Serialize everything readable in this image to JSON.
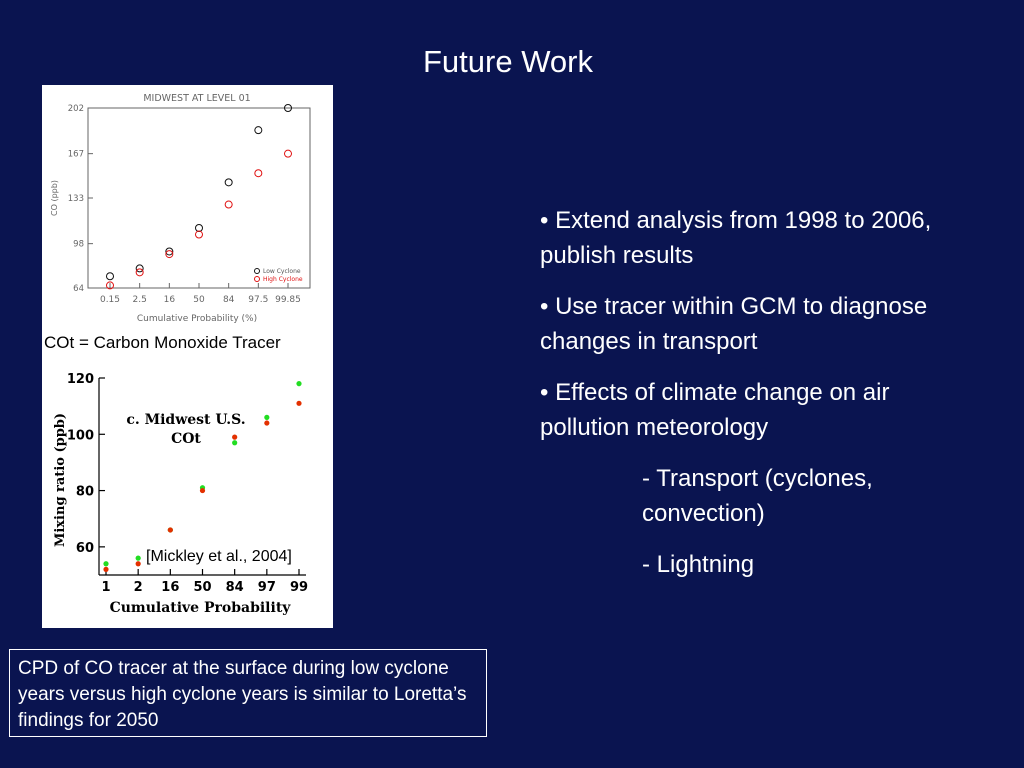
{
  "slide": {
    "title": "Future Work"
  },
  "caption_cot": "COt = Carbon Monoxide Tracer",
  "citation": "[Mickley et al., 2004]",
  "bullets": {
    "b1": "• Extend analysis from 1998 to 2006, publish results",
    "b2": "• Use tracer within GCM to diagnose changes in transport",
    "b3": "• Effects of climate change on air pollution meteorology",
    "sub1": "- Transport (cyclones, convection)",
    "sub2": "- Lightning"
  },
  "note": "CPD of CO tracer at the surface during low cyclone years versus high cyclone years is similar to Loretta’s findings for 2050",
  "colors": {
    "background": "#0a1450",
    "low_cyclone": "#111111",
    "high_cyclone": "#e01010",
    "green_series": "#22dd22",
    "red_series": "#e33000"
  },
  "chart_data": [
    {
      "type": "scatter",
      "title": "MIDWEST AT LEVEL 01",
      "xlabel": "Cumulative Probability (%)",
      "ylabel": "CO (ppb)",
      "x_tick_labels": [
        "0.15",
        "2.5",
        "16",
        "50",
        "84",
        "97.5",
        "99.85"
      ],
      "y_ticks": [
        64,
        98,
        133,
        167,
        202
      ],
      "ylim": [
        64,
        202
      ],
      "legend": "bottom-right",
      "legend_entries": [
        "Low Cyclone",
        "High Cyclone"
      ],
      "series": [
        {
          "name": "Low Cyclone",
          "x": [
            0.15,
            2.5,
            16,
            50,
            84,
            97.5,
            99.85
          ],
          "y": [
            73,
            79,
            92,
            110,
            145,
            185,
            202
          ]
        },
        {
          "name": "High Cyclone",
          "x": [
            0.15,
            2.5,
            16,
            50,
            84,
            97.5,
            99.85
          ],
          "y": [
            66,
            76,
            90,
            105,
            128,
            152,
            167
          ]
        }
      ]
    },
    {
      "type": "scatter",
      "title": "c. Midwest U.S. COt",
      "xlabel": "Cumulative Probability",
      "ylabel": "Mixing ratio (ppb)",
      "x_tick_labels": [
        "1",
        "2",
        "16",
        "50",
        "84",
        "97",
        "99"
      ],
      "y_ticks": [
        60,
        80,
        100,
        120
      ],
      "ylim": [
        50,
        120
      ],
      "series": [
        {
          "x": [
            1,
            2,
            16,
            50,
            84,
            97,
            99
          ],
          "y": [
            54,
            56,
            66,
            81,
            97,
            106,
            118
          ]
        },
        {
          "x": [
            1,
            2,
            16,
            50,
            84,
            97,
            99
          ],
          "y": [
            52,
            54,
            66,
            80,
            99,
            104,
            111
          ]
        }
      ]
    }
  ]
}
